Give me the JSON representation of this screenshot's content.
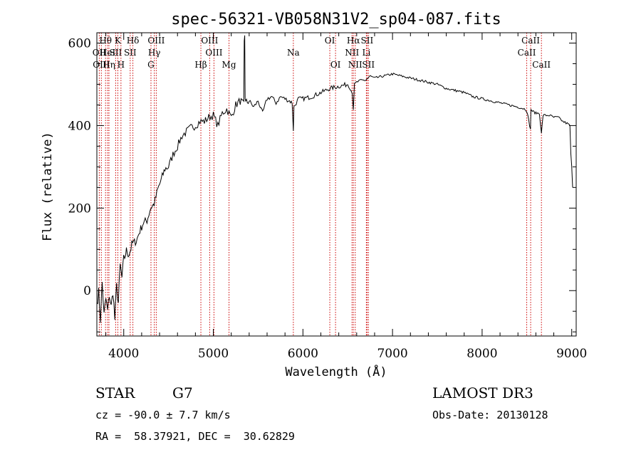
{
  "chart_data": {
    "type": "line",
    "title": "spec-56321-VB058N31V2_sp04-087.fits",
    "xlabel": "Wavelength (Å)",
    "ylabel": "Flux (relative)",
    "xlim": [
      3700,
      9050
    ],
    "ylim": [
      -110,
      625
    ],
    "xticks": [
      4000,
      5000,
      6000,
      7000,
      8000,
      9000
    ],
    "yticks": [
      0,
      200,
      400,
      600
    ],
    "grid": false,
    "series": [
      {
        "name": "spectrum",
        "color": "#000000",
        "x": [
          3700,
          3720,
          3740,
          3760,
          3780,
          3800,
          3820,
          3840,
          3860,
          3880,
          3900,
          3920,
          3940,
          3960,
          3980,
          4000,
          4030,
          4060,
          4100,
          4140,
          4180,
          4220,
          4260,
          4300,
          4340,
          4380,
          4420,
          4460,
          4500,
          4550,
          4600,
          4650,
          4700,
          4750,
          4800,
          4850,
          4900,
          4950,
          5000,
          5050,
          5100,
          5150,
          5200,
          5250,
          5300,
          5340,
          5345,
          5350,
          5355,
          5360,
          5400,
          5450,
          5500,
          5550,
          5600,
          5650,
          5700,
          5750,
          5800,
          5850,
          5880,
          5893,
          5900,
          5950,
          6000,
          6100,
          6200,
          6300,
          6400,
          6500,
          6550,
          6563,
          6575,
          6600,
          6650,
          6700,
          6750,
          6800,
          6900,
          7000,
          7100,
          7200,
          7300,
          7400,
          7500,
          7600,
          7700,
          7800,
          7900,
          8000,
          8100,
          8200,
          8300,
          8400,
          8480,
          8500,
          8540,
          8545,
          8560,
          8600,
          8640,
          8662,
          8680,
          8750,
          8800,
          8850,
          8900,
          8950,
          8980,
          8990,
          9000,
          9010
        ],
        "y": [
          -30,
          -5,
          -70,
          20,
          -60,
          -20,
          -50,
          -10,
          -40,
          0,
          -70,
          10,
          -30,
          60,
          30,
          75,
          95,
          90,
          115,
          120,
          145,
          165,
          170,
          200,
          210,
          245,
          270,
          295,
          300,
          330,
          350,
          375,
          385,
          395,
          400,
          410,
          410,
          420,
          425,
          400,
          430,
          440,
          420,
          450,
          460,
          450,
          600,
          620,
          470,
          455,
          460,
          445,
          460,
          430,
          465,
          470,
          455,
          470,
          465,
          460,
          455,
          390,
          445,
          465,
          465,
          470,
          480,
          490,
          495,
          500,
          480,
          440,
          500,
          505,
          510,
          510,
          520,
          515,
          520,
          525,
          520,
          515,
          510,
          505,
          500,
          490,
          485,
          480,
          470,
          465,
          460,
          455,
          450,
          445,
          440,
          435,
          390,
          440,
          435,
          430,
          430,
          380,
          425,
          425,
          420,
          420,
          410,
          405,
          400,
          330,
          300,
          250
        ]
      }
    ],
    "line_markers": [
      {
        "label": "Hθ",
        "x": 3797,
        "row": 1
      },
      {
        "label": "OII",
        "x": 3727,
        "row": 2
      },
      {
        "label": "OIII",
        "x": 3750,
        "row": 3
      },
      {
        "label": "HeI",
        "x": 3820,
        "row": 2
      },
      {
        "label": "Hη",
        "x": 3835,
        "row": 3
      },
      {
        "label": "K",
        "x": 3934,
        "row": 1
      },
      {
        "label": "SII",
        "x": 3910,
        "row": 2
      },
      {
        "label": "H",
        "x": 3969,
        "row": 3
      },
      {
        "label": "Hδ",
        "x": 4102,
        "row": 1
      },
      {
        "label": "SII",
        "x": 4072,
        "row": 2
      },
      {
        "label": "OIII",
        "x": 4363,
        "row": 1
      },
      {
        "label": "Hγ",
        "x": 4341,
        "row": 2
      },
      {
        "label": "G",
        "x": 4304,
        "row": 3
      },
      {
        "label": "OIII",
        "x": 4959,
        "row": 1
      },
      {
        "label": "OIII",
        "x": 5007,
        "row": 2
      },
      {
        "label": "Hβ",
        "x": 4861,
        "row": 3
      },
      {
        "label": "Mg",
        "x": 5175,
        "row": 3
      },
      {
        "label": "Na",
        "x": 5893,
        "row": 2
      },
      {
        "label": "OI",
        "x": 6300,
        "row": 1
      },
      {
        "label": "OI",
        "x": 6364,
        "row": 3
      },
      {
        "label": "Hα",
        "x": 6563,
        "row": 1
      },
      {
        "label": "SII",
        "x": 6716,
        "row": 1
      },
      {
        "label": "NII",
        "x": 6548,
        "row": 2
      },
      {
        "label": "Li",
        "x": 6708,
        "row": 2
      },
      {
        "label": "NII",
        "x": 6584,
        "row": 3
      },
      {
        "label": "SII",
        "x": 6731,
        "row": 3
      },
      {
        "label": "CaII",
        "x": 8542,
        "row": 1
      },
      {
        "label": "CaII",
        "x": 8498,
        "row": 2
      },
      {
        "label": "CaII",
        "x": 8662,
        "row": 3
      }
    ],
    "marker_color": "#cc0000"
  },
  "info": {
    "class": "STAR",
    "subclass": "G7",
    "survey": "LAMOST DR3",
    "cz": "cz = -90.0 ± 7.7 km/s",
    "obs_date": "Obs-Date: 20130128",
    "coords": "RA =  58.37921, DEC =  30.62829"
  }
}
